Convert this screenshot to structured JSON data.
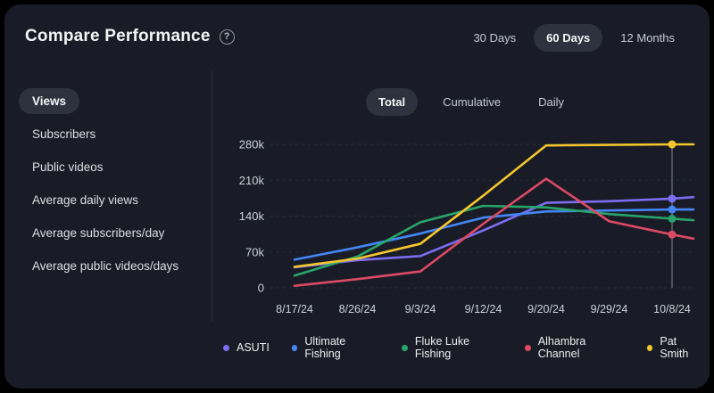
{
  "header": {
    "title": "Compare Performance",
    "help_icon": "?",
    "range_tabs": [
      {
        "label": "30 Days",
        "active": false
      },
      {
        "label": "60 Days",
        "active": true
      },
      {
        "label": "12 Months",
        "active": false
      }
    ]
  },
  "sidebar": {
    "items": [
      {
        "label": "Views",
        "active": true
      },
      {
        "label": "Subscribers",
        "active": false
      },
      {
        "label": "Public videos",
        "active": false
      },
      {
        "label": "Average daily views",
        "active": false
      },
      {
        "label": "Average subscribers/day",
        "active": false
      },
      {
        "label": "Average public videos/days",
        "active": false
      }
    ]
  },
  "view_tabs": [
    {
      "label": "Total",
      "active": true
    },
    {
      "label": "Cumulative",
      "active": false
    },
    {
      "label": "Daily",
      "active": false
    }
  ],
  "chart_data": {
    "type": "line",
    "x_labels": [
      "8/17/24",
      "8/26/24",
      "9/3/24",
      "9/12/24",
      "9/20/24",
      "9/29/24",
      "10/8/24"
    ],
    "y_ticks": [
      {
        "label": "0",
        "value": 0
      },
      {
        "label": "70k",
        "value": 70000
      },
      {
        "label": "140k",
        "value": 140000
      },
      {
        "label": "210k",
        "value": 210000
      },
      {
        "label": "280k",
        "value": 280000
      }
    ],
    "ylim": [
      0,
      280000
    ],
    "grid": "dashed-horizontal",
    "legend_position": "bottom",
    "hover_marker_x": "10/8/24",
    "series": [
      {
        "name": "ASUTI",
        "color": "#7c6df1",
        "values": [
          40000,
          54000,
          62000,
          112000,
          166000,
          169000,
          174000
        ],
        "edge_value": 177000
      },
      {
        "name": "Ultimate Fishing",
        "color": "#4486f6",
        "values": [
          55000,
          79000,
          106000,
          137000,
          149000,
          151000,
          153000
        ],
        "edge_value": 153000
      },
      {
        "name": "Fluke Luke Fishing",
        "color": "#28a569",
        "values": [
          24000,
          61000,
          128000,
          160000,
          157000,
          144000,
          135000
        ],
        "edge_value": 132000
      },
      {
        "name": "Alhambra Channel",
        "color": "#dc4a64",
        "values": [
          4000,
          17000,
          32000,
          125000,
          213000,
          130000,
          104000
        ],
        "edge_value": 96000
      },
      {
        "name": "Pat Smith",
        "color": "#f6c62e",
        "values": [
          41000,
          57000,
          86000,
          180000,
          278000,
          279000,
          280000
        ],
        "edge_value": 280000
      }
    ]
  },
  "colors": {
    "card_bg": "#191c26",
    "pill_bg": "#2d323e",
    "grid_line": "#2b303b",
    "axis_text": "#ccd1da",
    "crosshair": "#5d626e"
  }
}
